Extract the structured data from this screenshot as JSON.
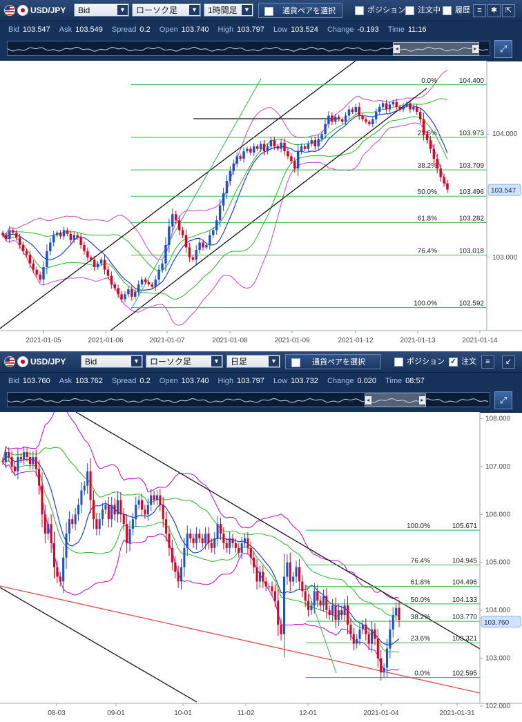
{
  "panels": [
    {
      "toolbar": {
        "pair": "USD/JPY",
        "price_type": "Bid",
        "chart_style": "ローソク足",
        "timeframe": "1時間足",
        "select_pair_button": "通貨ペアを選択",
        "checkboxes": [
          {
            "label": "ポジション",
            "checked": false
          },
          {
            "label": "注文中",
            "checked": false
          },
          {
            "label": "履歴",
            "checked": false
          }
        ]
      },
      "quotes": {
        "bid_label": "Bid",
        "bid": "103.547",
        "ask_label": "Ask",
        "ask": "103.549",
        "spread_label": "Spread",
        "spread": "0.2",
        "open_label": "Open",
        "open": "103.740",
        "high_label": "High",
        "high": "103.797",
        "low_label": "Low",
        "low": "103.524",
        "change_label": "Change",
        "change": "-0.193",
        "time_label": "Time",
        "time": "11:16"
      },
      "navigator": {
        "start_fraction": 0.8,
        "end_fraction": 0.975
      }
    },
    {
      "toolbar": {
        "pair": "USD/JPY",
        "price_type": "Bid",
        "chart_style": "ローソク足",
        "timeframe": "日足",
        "select_pair_button": "通貨ペアを選択",
        "checkboxes": [
          {
            "label": "ポジション",
            "checked": false
          },
          {
            "label": "注文",
            "checked": true
          }
        ]
      },
      "quotes": {
        "bid_label": "Bid",
        "bid": "103.760",
        "ask_label": "Ask",
        "ask": "103.762",
        "spread_label": "Spread",
        "spread": "0.2",
        "open_label": "Open",
        "open": "103.740",
        "high_label": "High",
        "high": "103.797",
        "low_label": "Low",
        "low": "103.732",
        "change_label": "Change",
        "change": "0.020",
        "time_label": "Time",
        "time": "08:57"
      },
      "navigator": {
        "start_fraction": 0.74,
        "end_fraction": 0.865
      }
    }
  ],
  "chart_data": [
    {
      "type": "candlestick",
      "instrument": "USD/JPY",
      "timeframe": "1時間足",
      "x_ticks": [
        "2021-01-05",
        "2021-01-06",
        "2021-01-07",
        "2021-01-08",
        "2021-01-09",
        "2021-01-12",
        "2021-01-13",
        "2021-01-14"
      ],
      "y_ticks": [
        {
          "value": 104.0,
          "label": "104.000"
        },
        {
          "value": 103.0,
          "label": "103.000"
        }
      ],
      "ylim": [
        102.45,
        104.55
      ],
      "current_price": 103.547,
      "current_price_label": "103.547",
      "colors": {
        "up": "#1a4fd6",
        "down": "#e0001b",
        "fib": "#33b54a",
        "bb_outer": "#cc44cc",
        "bb_inner": "#22bb22",
        "ma": "#1a3fd6"
      },
      "fibonacci": [
        {
          "level": "0.0%",
          "price": "104.400",
          "value": 104.4
        },
        {
          "level": "23.6%",
          "price": "103.973",
          "value": 103.973
        },
        {
          "level": "38.2%",
          "price": "103.709",
          "value": 103.709
        },
        {
          "level": "50.0%",
          "price": "103.496",
          "value": 103.496
        },
        {
          "level": "61.8%",
          "price": "103.282",
          "value": 103.282
        },
        {
          "level": "76.4%",
          "price": "103.018",
          "value": 103.018
        },
        {
          "level": "100.0%",
          "price": "102.592",
          "value": 102.592
        }
      ],
      "closes": [
        103.18,
        103.15,
        103.22,
        103.2,
        103.16,
        103.1,
        103.05,
        103.02,
        102.95,
        102.9,
        102.86,
        102.82,
        102.92,
        103.05,
        103.12,
        103.18,
        103.2,
        103.17,
        103.22,
        103.19,
        103.14,
        103.18,
        103.16,
        103.1,
        103.05,
        103.0,
        102.98,
        102.92,
        102.95,
        102.98,
        102.9,
        102.85,
        102.78,
        102.75,
        102.7,
        102.66,
        102.7,
        102.74,
        102.68,
        102.72,
        102.78,
        102.82,
        102.8,
        102.78,
        102.76,
        102.82,
        102.9,
        102.95,
        103.1,
        103.25,
        103.35,
        103.3,
        103.22,
        103.18,
        103.08,
        103.0,
        102.98,
        103.06,
        103.12,
        103.08,
        103.1,
        103.18,
        103.22,
        103.3,
        103.42,
        103.52,
        103.62,
        103.7,
        103.76,
        103.82,
        103.8,
        103.86,
        103.88,
        103.85,
        103.9,
        103.88,
        103.92,
        103.86,
        103.9,
        103.95,
        103.9,
        103.88,
        103.93,
        103.86,
        103.82,
        103.78,
        103.72,
        103.86,
        103.9,
        103.88,
        103.92,
        103.95,
        103.9,
        103.96,
        104.0,
        104.08,
        104.15,
        104.1,
        104.14,
        104.12,
        104.1,
        104.15,
        104.2,
        104.18,
        104.22,
        104.15,
        104.12,
        104.1,
        104.08,
        104.12,
        104.18,
        104.22,
        104.25,
        104.2,
        104.24,
        104.26,
        104.22,
        104.2,
        104.23,
        104.25,
        104.2,
        104.22,
        104.18,
        104.12,
        104.0,
        103.95,
        103.88,
        103.8,
        103.72,
        103.65,
        103.6,
        103.55
      ]
    },
    {
      "type": "candlestick",
      "instrument": "USD/JPY",
      "timeframe": "日足",
      "x_ticks": [
        "08-03",
        "09-01",
        "10-01",
        "11-02",
        "12-01",
        "2021-01-04",
        "2021-01-31"
      ],
      "y_ticks": [
        {
          "value": 108.0,
          "label": "108.000"
        },
        {
          "value": 107.0,
          "label": "107.000"
        },
        {
          "value": 106.0,
          "label": "106.000"
        },
        {
          "value": 105.0,
          "label": "105.000"
        },
        {
          "value": 104.0,
          "label": "104.000"
        },
        {
          "value": 103.0,
          "label": "103.000"
        },
        {
          "value": 102.0,
          "label": "102.000"
        }
      ],
      "ylim": [
        101.97,
        108.05
      ],
      "current_price": 103.76,
      "current_price_label": "103.760",
      "colors": {
        "up": "#1a4fd6",
        "down": "#e0001b",
        "fib": "#33b54a",
        "bb_outer": "#cc00cc",
        "bb_inner": "#22bb22",
        "ma": "#1a3fd6",
        "support": "#e24a4a"
      },
      "fibonacci": [
        {
          "level": "0.0%",
          "price": "102.595",
          "value": 102.595
        },
        {
          "level": "23.6%",
          "price": "103.321",
          "value": 103.321
        },
        {
          "level": "38.2%",
          "price": "103.770",
          "value": 103.77
        },
        {
          "level": "50.0%",
          "price": "104.133",
          "value": 104.133
        },
        {
          "level": "61.8%",
          "price": "104.496",
          "value": 104.496
        },
        {
          "level": "76.4%",
          "price": "104.945",
          "value": 104.945
        },
        {
          "level": "100.0%",
          "price": "105.671",
          "value": 105.671
        }
      ],
      "closes": [
        107.1,
        107.3,
        107.2,
        107.0,
        106.9,
        107.2,
        107.15,
        107.3,
        107.2,
        107.05,
        107.2,
        106.95,
        106.6,
        106.0,
        105.6,
        105.8,
        105.4,
        104.9,
        104.7,
        104.6,
        105.1,
        105.6,
        105.9,
        105.8,
        106.0,
        106.2,
        106.5,
        106.6,
        106.9,
        106.3,
        105.9,
        105.7,
        105.9,
        106.1,
        106.2,
        105.9,
        106.2,
        106.0,
        106.3,
        106.0,
        105.8,
        105.4,
        105.7,
        105.9,
        106.2,
        106.3,
        106.1,
        106.0,
        106.2,
        106.4,
        106.3,
        106.4,
        106.2,
        105.9,
        105.6,
        105.3,
        105.0,
        104.8,
        104.6,
        104.9,
        105.3,
        105.6,
        105.5,
        105.4,
        105.6,
        105.5,
        105.4,
        105.6,
        105.4,
        105.3,
        105.5,
        105.8,
        105.6,
        105.4,
        105.3,
        105.5,
        105.4,
        105.3,
        105.2,
        105.4,
        105.5,
        105.3,
        105.1,
        104.9,
        104.6,
        104.8,
        104.6,
        104.5,
        104.5,
        104.4,
        104.2,
        103.7,
        103.5,
        104.7,
        105.0,
        104.6,
        104.7,
        104.9,
        104.6,
        104.4,
        104.2,
        104.0,
        104.1,
        104.4,
        104.2,
        104.1,
        104.3,
        104.0,
        103.9,
        104.1,
        103.8,
        104.0,
        103.9,
        104.1,
        103.7,
        103.5,
        103.3,
        103.4,
        103.6,
        103.7,
        103.5,
        103.3,
        103.6,
        103.4,
        103.0,
        102.7,
        102.8,
        103.2,
        103.6,
        103.9,
        104.05,
        103.8
      ]
    }
  ]
}
